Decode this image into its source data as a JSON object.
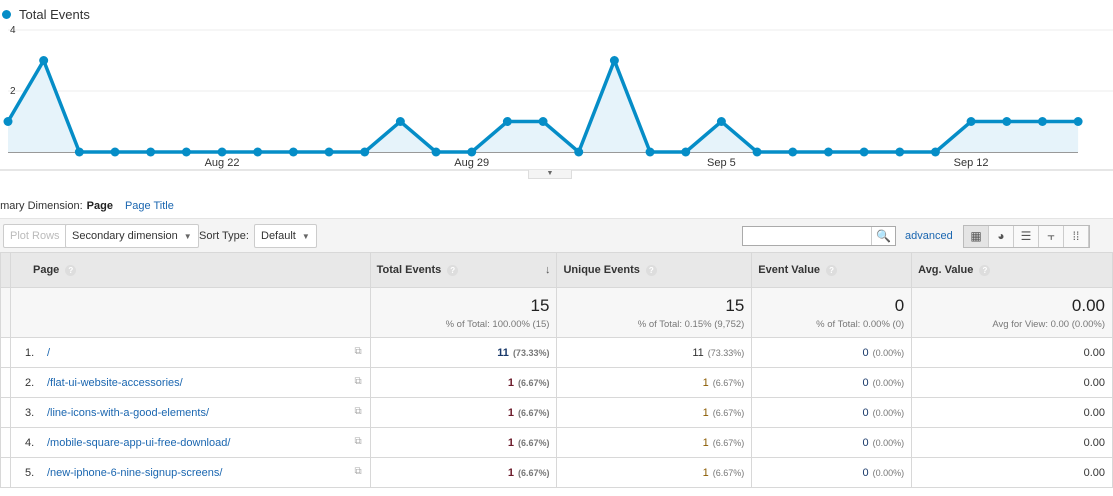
{
  "legend": "Total Events",
  "chart_data": {
    "type": "line",
    "title": "",
    "series": [
      {
        "name": "Total Events",
        "color": "#058dc7",
        "values": [
          1,
          3,
          0,
          0,
          0,
          0,
          0,
          0,
          0,
          0,
          0,
          1,
          0,
          0,
          1,
          1,
          0,
          3,
          0,
          0,
          1,
          0,
          0,
          0,
          0,
          0,
          0,
          1,
          1,
          1,
          1
        ]
      }
    ],
    "x": [
      "Aug 16",
      "Aug 17",
      "Aug 18",
      "Aug 19",
      "Aug 20",
      "Aug 21",
      "Aug 22",
      "Aug 23",
      "Aug 24",
      "Aug 25",
      "Aug 26",
      "Aug 27",
      "Aug 28",
      "Aug 29",
      "Aug 30",
      "Aug 31",
      "Sep 1",
      "Sep 2",
      "Sep 3",
      "Sep 4",
      "Sep 5",
      "Sep 6",
      "Sep 7",
      "Sep 8",
      "Sep 9",
      "Sep 10",
      "Sep 11",
      "Sep 12",
      "Sep 13",
      "Sep 14",
      "Sep 15"
    ],
    "xticks": [
      "Aug 22",
      "Aug 29",
      "Sep 5",
      "Sep 12"
    ],
    "yticks": [
      "2",
      "4"
    ],
    "ylim": [
      0,
      4
    ]
  },
  "dims": {
    "label": "rimary Dimension:",
    "active": "Page",
    "other": "Page Title"
  },
  "toolbar": {
    "plot_rows": "Plot Rows",
    "secondary": "Secondary dimension",
    "sort_label": "Sort Type:",
    "sort_value": "Default",
    "search_value": "",
    "advanced": "advanced"
  },
  "headers": [
    "Page",
    "Total Events",
    "Unique Events",
    "Event Value",
    "Avg. Value"
  ],
  "totals": [
    {
      "value": "15",
      "sub": "% of Total: 100.00% (15)"
    },
    {
      "value": "15",
      "sub": "% of Total: 0.15% (9,752)"
    },
    {
      "value": "0",
      "sub": "% of Total: 0.00% (0)"
    },
    {
      "value": "0.00",
      "sub": "Avg for View: 0.00 (0.00%)"
    }
  ],
  "rows": [
    {
      "idx": "1.",
      "page": "/",
      "te": "11",
      "tep": "(73.33%)",
      "ue": "11",
      "uep": "(73.33%)",
      "ev": "0",
      "evp": "(0.00%)",
      "av": "0.00"
    },
    {
      "idx": "2.",
      "page": "/flat-ui-website-accessories/",
      "te": "1",
      "tep": "(6.67%)",
      "ue": "1",
      "uep": "(6.67%)",
      "ev": "0",
      "evp": "(0.00%)",
      "av": "0.00"
    },
    {
      "idx": "3.",
      "page": "/line-icons-with-a-good-elements/",
      "te": "1",
      "tep": "(6.67%)",
      "ue": "1",
      "uep": "(6.67%)",
      "ev": "0",
      "evp": "(0.00%)",
      "av": "0.00"
    },
    {
      "idx": "4.",
      "page": "/mobile-square-app-ui-free-download/",
      "te": "1",
      "tep": "(6.67%)",
      "ue": "1",
      "uep": "(6.67%)",
      "ev": "0",
      "evp": "(0.00%)",
      "av": "0.00"
    },
    {
      "idx": "5.",
      "page": "/new-iphone-6-nine-signup-screens/",
      "te": "1",
      "tep": "(6.67%)",
      "ue": "1",
      "uep": "(6.67%)",
      "ev": "0",
      "evp": "(0.00%)",
      "av": "0.00"
    }
  ]
}
